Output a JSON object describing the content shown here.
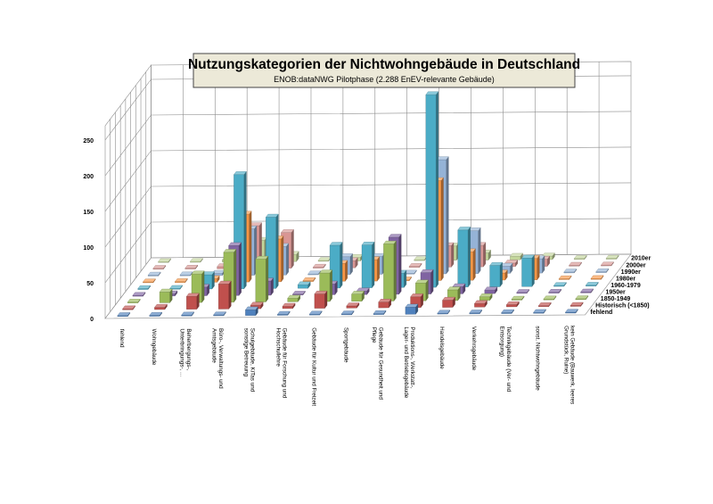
{
  "chart_data": {
    "type": "bar",
    "subtype": "3d-column",
    "title": "Nutzungskategorien der Nichtwohngebäude in Deutschland",
    "subtitle": "ENOB:dataNWG Pilotphase (2.288 EnEV-relevante Gebäude)",
    "y_ticks": [
      "0",
      "50",
      "100",
      "150",
      "200",
      "250"
    ],
    "ylim": [
      0,
      270
    ],
    "grid": true,
    "categories": [
      [
        "fehlend"
      ],
      [
        "Wohngebäude"
      ],
      [
        "Beherbergungs-,",
        "Unterbringungs-, ..."
      ],
      [
        "Büro-, Verwaltungs- und",
        "Amtsgebäude"
      ],
      [
        "Schulgebäude, KiTas und",
        "sonstige Betreuung"
      ],
      [
        "Gebäude für Forschung und",
        "Hochschullehre"
      ],
      [
        "Gebäude für Kultur und Freizeit"
      ],
      [
        "Sportgebäude"
      ],
      [
        "Gebäude für Gesundheit und",
        "Pflege"
      ],
      [
        "Produktions-, Werkstatt-,",
        "Lager- und Betriebsgebäude"
      ],
      [
        "Handelsgebäude"
      ],
      [
        "Verkehrsgebäude"
      ],
      [
        "Technikgebäude (Ver- und",
        "Entsorgung)"
      ],
      [
        "sonst. Nichtwohngebäude"
      ],
      [
        "kein Gebäude (Bauwerk, leeres",
        "Grundstück, Ruine)"
      ]
    ],
    "series": [
      {
        "name": "fehlend",
        "color": "#4f81bd",
        "values": [
          0,
          0,
          0,
          0,
          8,
          0,
          0,
          0,
          0,
          10,
          0,
          0,
          0,
          0,
          0
        ]
      },
      {
        "name": "Historisch (<1850)",
        "color": "#c0504d",
        "values": [
          0,
          3,
          18,
          35,
          5,
          3,
          20,
          3,
          8,
          15,
          10,
          5,
          3,
          0,
          0
        ]
      },
      {
        "name": "1850-1949",
        "color": "#9bbb59",
        "values": [
          0,
          15,
          40,
          70,
          60,
          5,
          40,
          10,
          80,
          25,
          15,
          5,
          0,
          0,
          0
        ]
      },
      {
        "name": "1950er",
        "color": "#8064a2",
        "values": [
          0,
          3,
          12,
          70,
          20,
          0,
          15,
          5,
          80,
          30,
          10,
          5,
          0,
          0,
          0
        ]
      },
      {
        "name": "1960-1979",
        "color": "#4bacc6",
        "values": [
          0,
          0,
          20,
          160,
          100,
          5,
          60,
          60,
          20,
          270,
          80,
          30,
          40,
          0,
          0
        ]
      },
      {
        "name": "1980er",
        "color": "#f79646",
        "values": [
          0,
          0,
          5,
          95,
          60,
          0,
          25,
          30,
          0,
          140,
          40,
          10,
          30,
          0,
          0
        ]
      },
      {
        "name": "1990er",
        "color": "#95b3d7",
        "values": [
          0,
          0,
          3,
          65,
          40,
          0,
          25,
          25,
          0,
          160,
          60,
          10,
          20,
          0,
          0
        ]
      },
      {
        "name": "2000er",
        "color": "#d99694",
        "values": [
          0,
          0,
          3,
          60,
          50,
          0,
          10,
          10,
          0,
          30,
          30,
          5,
          10,
          0,
          0
        ]
      },
      {
        "name": "2010er",
        "color": "#c3d69b",
        "values": [
          0,
          0,
          3,
          30,
          10,
          0,
          5,
          5,
          0,
          20,
          10,
          5,
          5,
          0,
          0
        ]
      }
    ]
  }
}
